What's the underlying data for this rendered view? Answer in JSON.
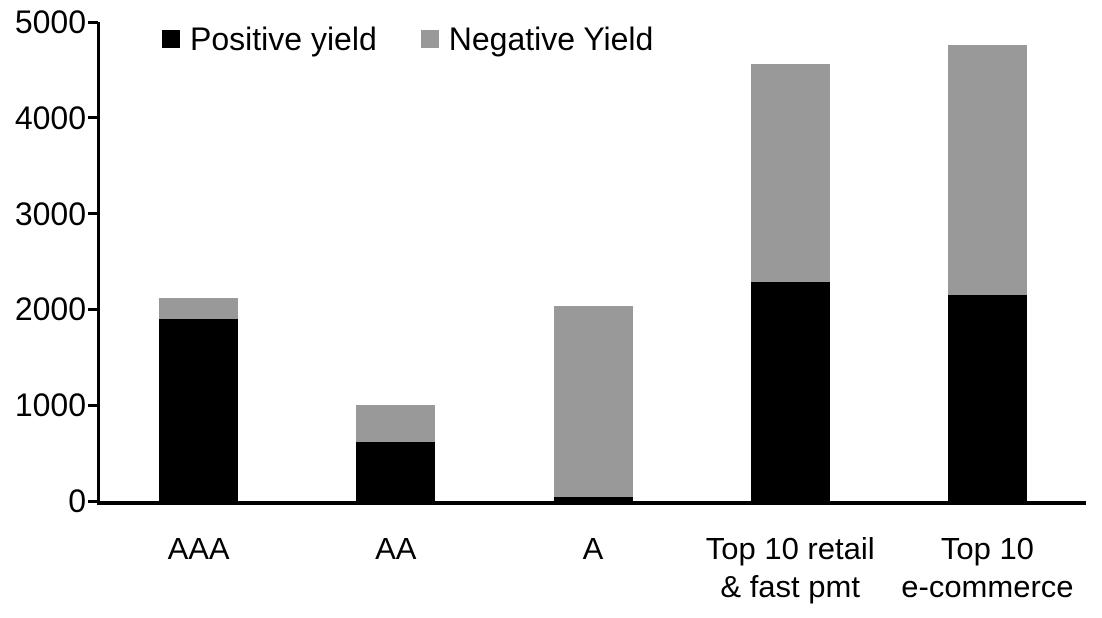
{
  "chart_data": {
    "type": "bar",
    "stacked": true,
    "title": "",
    "xlabel": "",
    "ylabel": "",
    "categories": [
      "AAA",
      "AA",
      "A",
      "Top 10 retail\n& fast pmt",
      "Top 10\ne-commerce"
    ],
    "series": [
      {
        "name": "Positive yield",
        "color": "#000000",
        "values": [
          1900,
          620,
          40,
          2290,
          2150
        ]
      },
      {
        "name": "Negative Yield",
        "color": "#999999",
        "values": [
          220,
          380,
          2000,
          2270,
          2610
        ]
      }
    ],
    "ylim": [
      0,
      5000
    ],
    "yticks": [
      0,
      1000,
      2000,
      3000,
      4000,
      5000
    ],
    "grid": false,
    "legend_position": "top-inside",
    "axis_color": "#000000",
    "background_color": "#ffffff"
  }
}
